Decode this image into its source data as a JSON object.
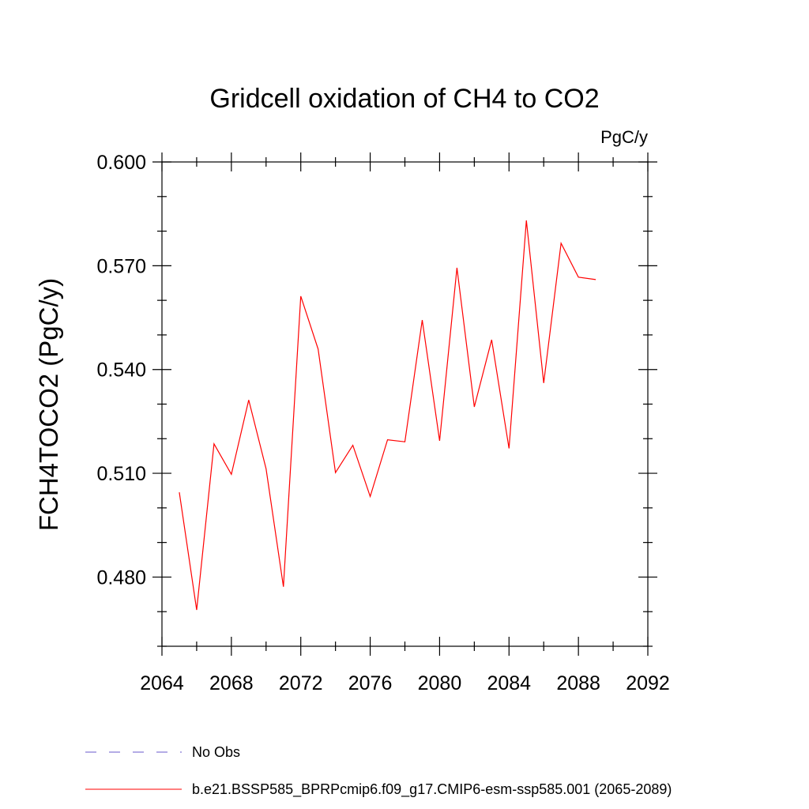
{
  "chart_data": {
    "type": "line",
    "title": "Gridcell oxidation of CH4 to CO2",
    "units": "PgC/y",
    "xlabel": "",
    "ylabel": "FCH4TOCO2  (PgC/y)",
    "xlim": [
      2064,
      2092
    ],
    "ylim": [
      0.46,
      0.6
    ],
    "x_ticks": [
      2064,
      2068,
      2072,
      2076,
      2080,
      2084,
      2088,
      2092
    ],
    "x_tick_labels": [
      "2064",
      "2068",
      "2072",
      "2076",
      "2080",
      "2084",
      "2088",
      "2092"
    ],
    "y_ticks": [
      0.48,
      0.51,
      0.54,
      0.57,
      0.6
    ],
    "y_tick_labels": [
      "0.480",
      "0.510",
      "0.540",
      "0.570",
      "0.600"
    ],
    "grid": false,
    "legend_position": "bottom",
    "series": [
      {
        "name": "b.e21.BSSP585_BPRPcmip6.f09_g17.CMIP6-esm-ssp585.001 (2065-2089)",
        "color": "#ff0000",
        "x": [
          2065,
          2066,
          2067,
          2068,
          2069,
          2070,
          2071,
          2072,
          2073,
          2074,
          2075,
          2076,
          2077,
          2078,
          2079,
          2080,
          2081,
          2082,
          2083,
          2084,
          2085,
          2086,
          2087,
          2088,
          2089
        ],
        "y": [
          0.5045,
          0.4705,
          0.5185,
          0.5097,
          0.5312,
          0.5113,
          0.4772,
          0.5612,
          0.5459,
          0.5102,
          0.5181,
          0.5033,
          0.5197,
          0.5191,
          0.5543,
          0.5194,
          0.5694,
          0.5292,
          0.5486,
          0.5172,
          0.5831,
          0.5361,
          0.5765,
          0.5667,
          0.566
        ]
      }
    ],
    "legend": [
      {
        "label": "No Obs",
        "color": "#6a5acd",
        "style": "dashed"
      },
      {
        "label": "b.e21.BSSP585_BPRPcmip6.f09_g17.CMIP6-esm-ssp585.001 (2065-2089)",
        "color": "#ff0000",
        "style": "solid"
      }
    ]
  }
}
